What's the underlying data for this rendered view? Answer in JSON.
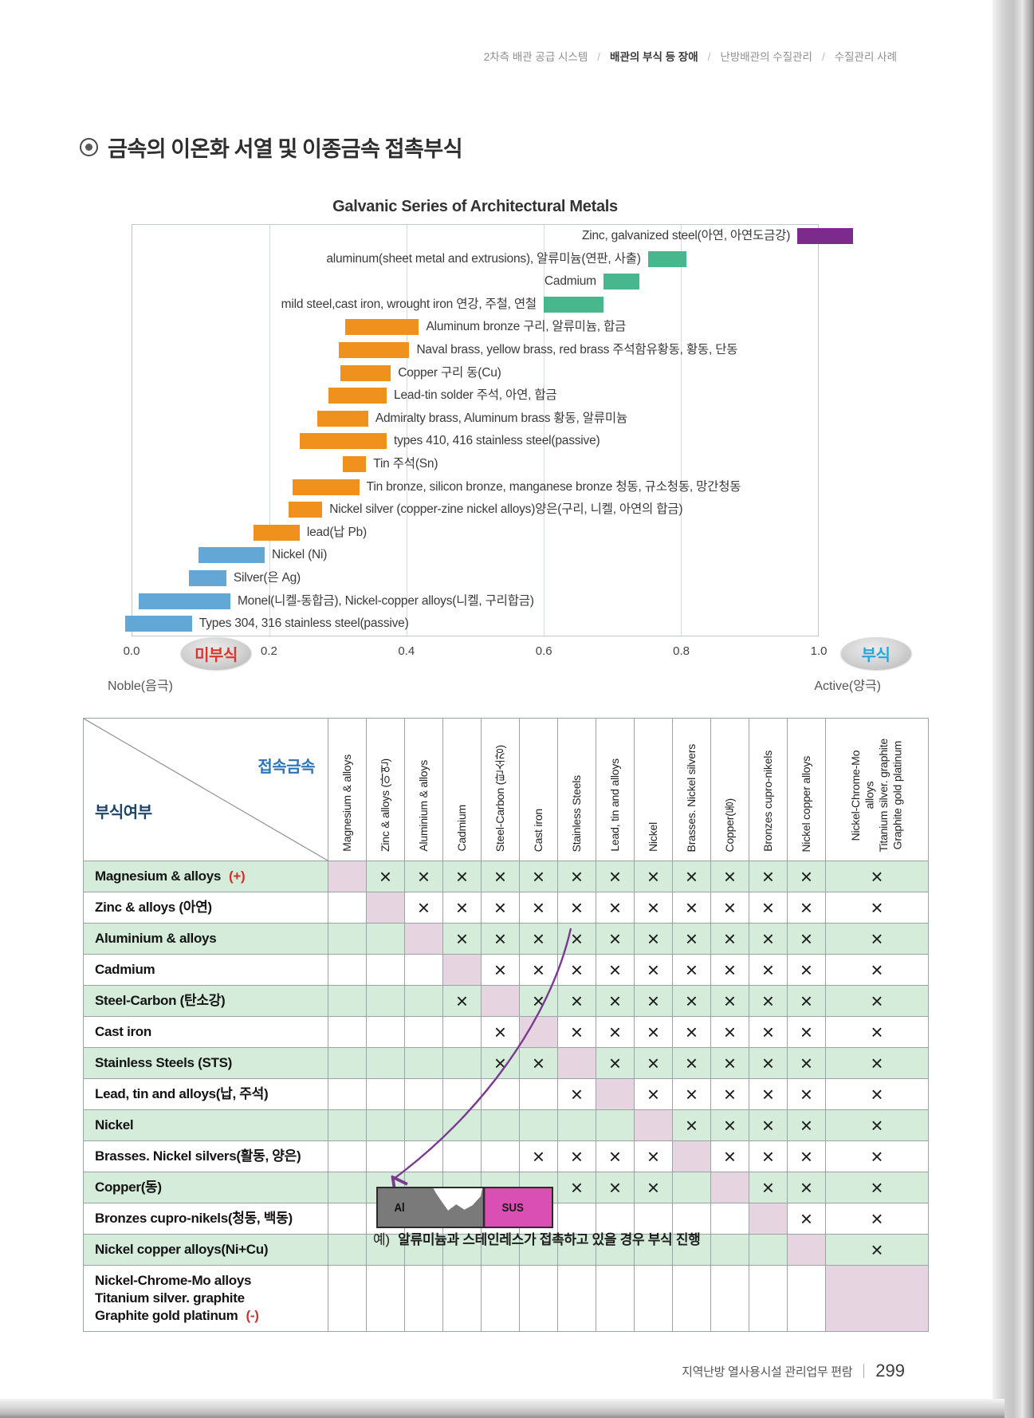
{
  "page": {
    "breadcrumb": [
      {
        "label": "2차측 배관 공급 시스템",
        "active": false
      },
      {
        "label": "배관의 부식 등 장애",
        "active": true
      },
      {
        "label": "난방배관의 수질관리",
        "active": false
      },
      {
        "label": "수질관리 사례",
        "active": false
      }
    ],
    "title": "금속의 이온화 서열 및 이종금속 접촉부식",
    "footer": {
      "text": "지역난방 열사용시설 관리업무 편람",
      "page_number": "299"
    }
  },
  "colors": {
    "purple_bar": "#7c2b8c",
    "green_bar": "#49b78d",
    "orange_bar": "#f0911e",
    "blue_bar": "#63a7d7",
    "row_green": "#d5ecdb",
    "diag_pink": "#e6d4e1",
    "badge_red": "#d6382e",
    "badge_blue": "#28a6dd",
    "corner_blue": "#2e74b6",
    "corner_navy": "#1f4569",
    "arrow_purple": "#7b3a90"
  },
  "chart_data": {
    "type": "bar",
    "orientation": "horizontal",
    "title": "Galvanic Series of Architectural Metals",
    "xlabel": "",
    "ylabel": "",
    "xlim": [
      0,
      1
    ],
    "grid": true,
    "x_ticks": [
      "0.0",
      "0.2",
      "0.4",
      "0.6",
      "0.8",
      "1.0"
    ],
    "axis_left_label": "Noble(음극)",
    "axis_right_label": "Active(양극)",
    "badge_left": {
      "text": "미부식",
      "center": 0.123
    },
    "badge_right": {
      "text": "부식",
      "center": 1.083
    },
    "bars": [
      {
        "label": "Zinc, galvanized steel(아연, 아연도금강)",
        "start": 0.97,
        "end": 1.051,
        "color": "#7c2b8c",
        "label_side": "left"
      },
      {
        "label": "aluminum(sheet metal and extrusions), 알류미늄(연판, 사출)",
        "start": 0.752,
        "end": 0.808,
        "color": "#49b78d",
        "label_side": "left"
      },
      {
        "label": "Cadmium",
        "start": 0.687,
        "end": 0.74,
        "color": "#49b78d",
        "label_side": "left"
      },
      {
        "label": "mild steel,cast iron, wrought iron 연강, 주철, 연철",
        "start": 0.6,
        "end": 0.687,
        "color": "#49b78d",
        "label_side": "left"
      },
      {
        "label": "Aluminum bronze 구리, 알류미늄, 합금",
        "start": 0.311,
        "end": 0.418,
        "color": "#f0911e",
        "label_side": "right"
      },
      {
        "label": "Naval brass, yellow brass, red brass 주석함유황동, 황동, 단동",
        "start": 0.301,
        "end": 0.404,
        "color": "#f0911e",
        "label_side": "right"
      },
      {
        "label": "Copper 구리 동(Cu)",
        "start": 0.304,
        "end": 0.377,
        "color": "#f0911e",
        "label_side": "right"
      },
      {
        "label": "Lead-tin solder 주석, 아연, 합금",
        "start": 0.286,
        "end": 0.371,
        "color": "#f0911e",
        "label_side": "right"
      },
      {
        "label": "Admiralty brass, Aluminum brass 황동, 알류미늄",
        "start": 0.27,
        "end": 0.344,
        "color": "#f0911e",
        "label_side": "right"
      },
      {
        "label": "types 410, 416 stainless steel(passive)",
        "start": 0.244,
        "end": 0.371,
        "color": "#f0911e",
        "label_side": "right"
      },
      {
        "label": "Tin 주석(Sn)",
        "start": 0.307,
        "end": 0.341,
        "color": "#f0911e",
        "label_side": "right"
      },
      {
        "label": "Tin bronze, silicon bronze, manganese bronze 청동, 규소청동, 망간청동",
        "start": 0.234,
        "end": 0.331,
        "color": "#f0911e",
        "label_side": "right"
      },
      {
        "label": "Nickel silver (copper-zine nickel alloys)양은(구리, 니켈, 아연의 합금)",
        "start": 0.228,
        "end": 0.277,
        "color": "#f0911e",
        "label_side": "right"
      },
      {
        "label": "lead(납 Pb)",
        "start": 0.177,
        "end": 0.244,
        "color": "#f0911e",
        "label_side": "right"
      },
      {
        "label": "Nickel (Ni)",
        "start": 0.096,
        "end": 0.193,
        "color": "#63a7d7",
        "label_side": "right"
      },
      {
        "label": "Silver(은 Ag)",
        "start": 0.083,
        "end": 0.137,
        "color": "#63a7d7",
        "label_side": "right"
      },
      {
        "label": "Monel(니켈-동합금), Nickel-copper alloys(니켈, 구리합금)",
        "start": 0.009,
        "end": 0.143,
        "color": "#63a7d7",
        "label_side": "right"
      },
      {
        "label": "Types 304, 316 stainless steel(passive)",
        "start": -0.011,
        "end": 0.087,
        "color": "#63a7d7",
        "label_side": "right"
      }
    ]
  },
  "matrix": {
    "corner": {
      "top_label": "접속금속",
      "bottom_label": "부식여부"
    },
    "columns": [
      "Magnesium & alloys",
      "Zinc & alloys (아연)",
      "Aluminium & alloys",
      "Cadmium",
      "Steel-Carbon (탄소강)",
      "Cast iron",
      "Stainless Steels",
      "Lead, tin and alloys",
      "Nickel",
      "Brasses. Nickel silvers",
      "Copper(동)",
      "Bronzes cupro-nikels",
      "Nickel copper alloys",
      "Nickel-Chrome-Mo\nalloys\nTitanium silver. graphite\nGraphite gold platinum"
    ],
    "rows": [
      {
        "label": "Magnesium & alloys",
        "suffix": "(+)",
        "cells": [
          "D",
          "X",
          "X",
          "X",
          "X",
          "X",
          "X",
          "X",
          "X",
          "X",
          "X",
          "X",
          "X",
          "X"
        ]
      },
      {
        "label": "Zinc & alloys (아연)",
        "suffix": "",
        "cells": [
          "",
          "D",
          "X",
          "X",
          "X",
          "X",
          "X",
          "X",
          "X",
          "X",
          "X",
          "X",
          "X",
          "X"
        ]
      },
      {
        "label": "Aluminium & alloys",
        "suffix": "",
        "cells": [
          "",
          "",
          "D",
          "X",
          "X",
          "X",
          "X",
          "X",
          "X",
          "X",
          "X",
          "X",
          "X",
          "X"
        ]
      },
      {
        "label": "Cadmium",
        "suffix": "",
        "cells": [
          "",
          "",
          "",
          "D",
          "X",
          "X",
          "X",
          "X",
          "X",
          "X",
          "X",
          "X",
          "X",
          "X"
        ]
      },
      {
        "label": "Steel-Carbon (탄소강)",
        "suffix": "",
        "cells": [
          "",
          "",
          "",
          "X",
          "D",
          "X",
          "X",
          "X",
          "X",
          "X",
          "X",
          "X",
          "X",
          "X"
        ]
      },
      {
        "label": "Cast iron",
        "suffix": "",
        "cells": [
          "",
          "",
          "",
          "",
          "X",
          "D",
          "X",
          "X",
          "X",
          "X",
          "X",
          "X",
          "X",
          "X"
        ]
      },
      {
        "label": "Stainless Steels (STS)",
        "suffix": "",
        "cells": [
          "",
          "",
          "",
          "",
          "X",
          "X",
          "D",
          "X",
          "X",
          "X",
          "X",
          "X",
          "X",
          "X"
        ]
      },
      {
        "label": "Lead, tin and alloys(납, 주석)",
        "suffix": "",
        "cells": [
          "",
          "",
          "",
          "",
          "",
          "",
          "X",
          "D",
          "X",
          "X",
          "X",
          "X",
          "X",
          "X"
        ]
      },
      {
        "label": "Nickel",
        "suffix": "",
        "cells": [
          "",
          "",
          "",
          "",
          "",
          "",
          "",
          "",
          "D",
          "X",
          "X",
          "X",
          "X",
          "X"
        ]
      },
      {
        "label": "Brasses. Nickel silvers(활동, 양은)",
        "suffix": "",
        "cells": [
          "",
          "",
          "",
          "",
          "",
          "X",
          "X",
          "X",
          "X",
          "D",
          "X",
          "X",
          "X",
          "X"
        ]
      },
      {
        "label": "Copper(동)",
        "suffix": "",
        "cells": [
          "",
          "",
          "",
          "",
          "",
          "",
          "X",
          "X",
          "X",
          "",
          "D",
          "X",
          "X",
          "X"
        ]
      },
      {
        "label": "Bronzes cupro-nikels(청동, 백동)",
        "suffix": "",
        "cells": [
          "",
          "",
          "",
          "",
          "",
          "",
          "",
          "",
          "",
          "",
          "",
          "D",
          "X",
          "X"
        ]
      },
      {
        "label": "Nickel copper alloys(Ni+Cu)",
        "suffix": "",
        "cells": [
          "",
          "",
          "",
          "",
          "",
          "",
          "",
          "",
          "",
          "",
          "",
          "",
          "D",
          "X"
        ]
      },
      {
        "label": "Nickel-Chrome-Mo alloys\nTitanium silver. graphite\nGraphite gold platinum",
        "suffix": "(-)",
        "cells": [
          "",
          "",
          "",
          "",
          "",
          "",
          "",
          "",
          "",
          "",
          "",
          "",
          "",
          "D"
        ]
      }
    ],
    "example": {
      "prefix": "예)",
      "text": "알류미늄과 스테인레스가 접촉하고 있을 경우 부식 진행"
    },
    "inset": {
      "left_label": "Al",
      "right_label": "SUS"
    }
  }
}
